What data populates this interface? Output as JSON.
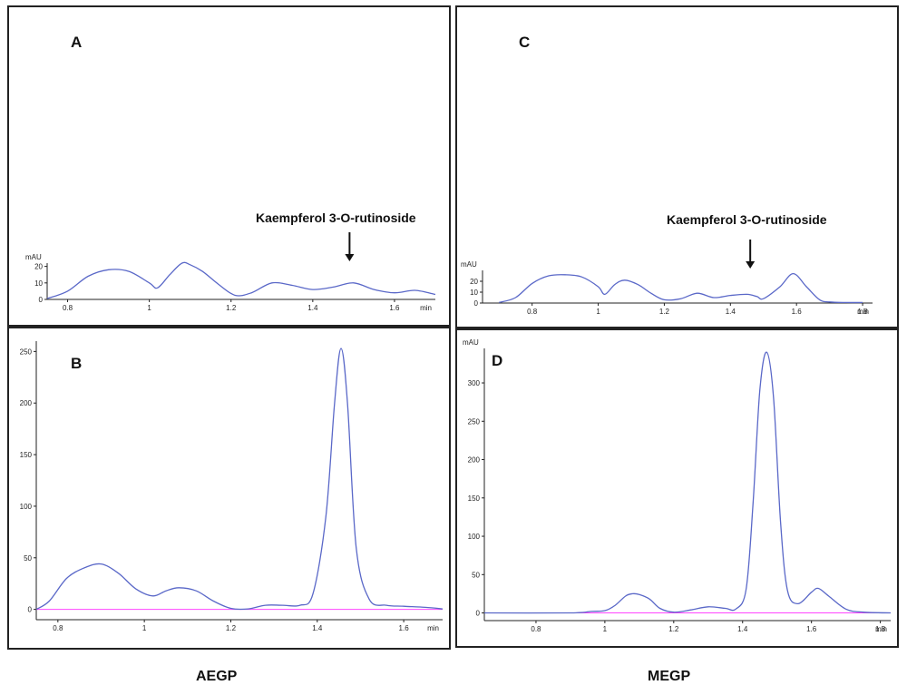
{
  "colors": {
    "trace": "#5a68c8",
    "baseline": "#ff44ff",
    "axis": "#222222",
    "frame": "#222222"
  },
  "group_labels": {
    "left": "AEGP",
    "right": "MEGP"
  },
  "chart_data": [
    {
      "id": "A",
      "type": "line",
      "panel_label": "A",
      "ylabel": "mAU",
      "xlabel": "min",
      "xlim": [
        0.75,
        1.7
      ],
      "ylim": [
        0,
        22
      ],
      "xticks": [
        0.8,
        1,
        1.2,
        1.4,
        1.6
      ],
      "xtick_labels": [
        "0.8",
        "1",
        "1.2",
        "1.4",
        "1.6"
      ],
      "yticks": [
        0,
        10,
        20
      ],
      "annotation": {
        "text": "Kaempferol 3-O-rutinoside",
        "x": 1.49
      },
      "series": [
        {
          "x": [
            0.75,
            0.8,
            0.85,
            0.9,
            0.95,
            1.0,
            1.02,
            1.05,
            1.08,
            1.1,
            1.13,
            1.17,
            1.21,
            1.25,
            1.3,
            1.35,
            1.4,
            1.45,
            1.5,
            1.55,
            1.6,
            1.65,
            1.7
          ],
          "y": [
            0.5,
            5,
            14,
            18,
            17,
            10,
            7,
            15,
            22,
            21,
            17,
            9,
            2.5,
            4,
            10,
            8.5,
            6,
            7.5,
            10,
            6,
            4,
            5.5,
            3
          ]
        }
      ]
    },
    {
      "id": "B",
      "type": "line",
      "panel_label": "B",
      "ylabel": "",
      "xlabel": "min",
      "xlim": [
        0.75,
        1.69
      ],
      "ylim": [
        -10,
        260
      ],
      "xticks": [
        0.8,
        1,
        1.2,
        1.4,
        1.6
      ],
      "xtick_labels": [
        "0.8",
        "1",
        "1.2",
        "1.4",
        "1.6"
      ],
      "yticks": [
        0,
        50,
        100,
        150,
        200,
        250
      ],
      "series": [
        {
          "x": [
            0.75,
            0.78,
            0.82,
            0.86,
            0.9,
            0.94,
            0.98,
            1.02,
            1.05,
            1.08,
            1.12,
            1.16,
            1.2,
            1.24,
            1.28,
            1.32,
            1.36,
            1.39,
            1.42,
            1.44,
            1.455,
            1.47,
            1.49,
            1.52,
            1.56,
            1.6,
            1.65,
            1.69
          ],
          "y": [
            0,
            8,
            30,
            40,
            44,
            35,
            20,
            13,
            18,
            21,
            18,
            8,
            1,
            0.5,
            4,
            4,
            4,
            15,
            90,
            200,
            253,
            200,
            60,
            10,
            4,
            3,
            2,
            0.5
          ]
        }
      ]
    },
    {
      "id": "C",
      "type": "line",
      "panel_label": "C",
      "ylabel": "mAU",
      "xlabel": "min",
      "xlim": [
        0.65,
        1.83
      ],
      "ylim": [
        0,
        30
      ],
      "xticks": [
        0.8,
        1,
        1.2,
        1.4,
        1.6,
        1.8
      ],
      "xtick_labels": [
        "0.8",
        "1",
        "1.2",
        "1.4",
        "1.6",
        "1.8"
      ],
      "yticks": [
        0,
        10,
        20
      ],
      "annotation": {
        "text": "Kaempferol 3-O-rutinoside",
        "x": 1.46
      },
      "series": [
        {
          "x": [
            0.7,
            0.75,
            0.8,
            0.85,
            0.9,
            0.95,
            1.0,
            1.02,
            1.05,
            1.08,
            1.12,
            1.16,
            1.2,
            1.25,
            1.3,
            1.35,
            1.4,
            1.45,
            1.48,
            1.5,
            1.55,
            1.59,
            1.63,
            1.67,
            1.7,
            1.75,
            1.8
          ],
          "y": [
            0.5,
            5,
            18,
            25,
            26,
            24,
            15,
            8,
            17,
            21,
            17,
            9,
            3,
            4,
            9,
            5,
            7,
            8,
            6,
            4,
            15,
            27,
            15,
            3,
            1,
            0.5,
            0.5
          ]
        }
      ]
    },
    {
      "id": "D",
      "type": "line",
      "panel_label": "D",
      "ylabel": "mAU",
      "xlabel": "min",
      "xlim": [
        0.65,
        1.83
      ],
      "ylim": [
        -10,
        345
      ],
      "xticks": [
        0.8,
        1,
        1.2,
        1.4,
        1.6,
        1.8
      ],
      "xtick_labels": [
        "0.8",
        "1",
        "1.2",
        "1.4",
        "1.6",
        "1.8"
      ],
      "yticks": [
        0,
        50,
        100,
        150,
        200,
        250,
        300
      ],
      "series": [
        {
          "x": [
            0.65,
            0.9,
            0.96,
            1.0,
            1.03,
            1.06,
            1.08,
            1.1,
            1.13,
            1.16,
            1.2,
            1.25,
            1.3,
            1.35,
            1.38,
            1.41,
            1.43,
            1.45,
            1.47,
            1.49,
            1.51,
            1.53,
            1.56,
            1.6,
            1.62,
            1.65,
            1.7,
            1.75,
            1.83
          ],
          "y": [
            0,
            0,
            2,
            3,
            10,
            22,
            25,
            24,
            18,
            6,
            1,
            4,
            8,
            6,
            5,
            30,
            140,
            290,
            340,
            280,
            120,
            30,
            12,
            27,
            32,
            22,
            5,
            1,
            0
          ]
        }
      ]
    }
  ]
}
